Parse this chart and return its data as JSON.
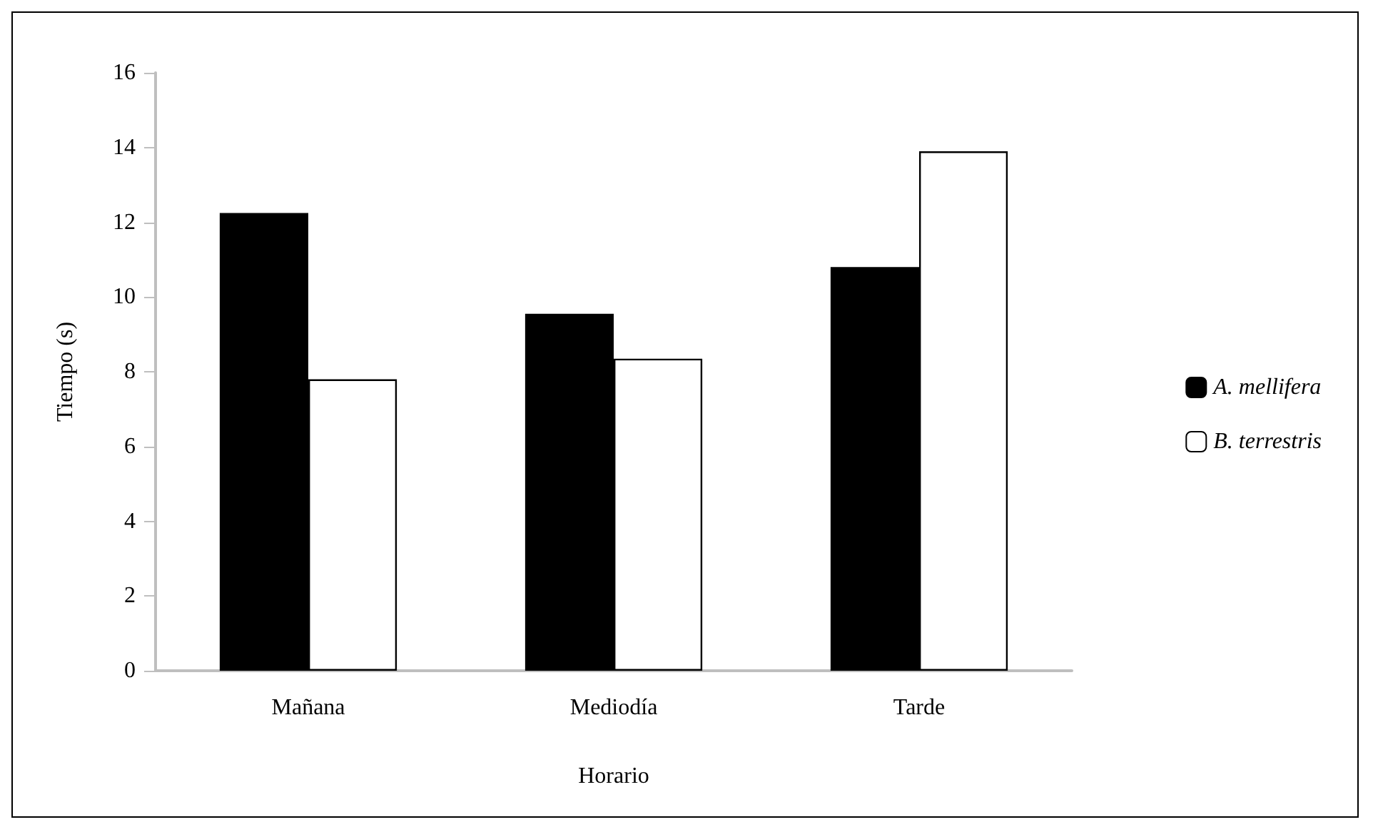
{
  "chart_data": {
    "type": "bar",
    "xlabel": "Horario",
    "ylabel": "Tiempo (s)",
    "categories": [
      "Mañana",
      "Mediodía",
      "Tarde"
    ],
    "series": [
      {
        "name": "A. mellifera",
        "color": "#000000",
        "values": [
          12.25,
          9.55,
          10.8
        ]
      },
      {
        "name": "B. terrestris",
        "color": "#ffffff",
        "values": [
          7.8,
          8.35,
          13.9
        ]
      }
    ],
    "ylim": [
      0,
      16
    ],
    "yticks": [
      0,
      2,
      4,
      6,
      8,
      10,
      12,
      14,
      16
    ],
    "grid": false,
    "legend": "right"
  }
}
